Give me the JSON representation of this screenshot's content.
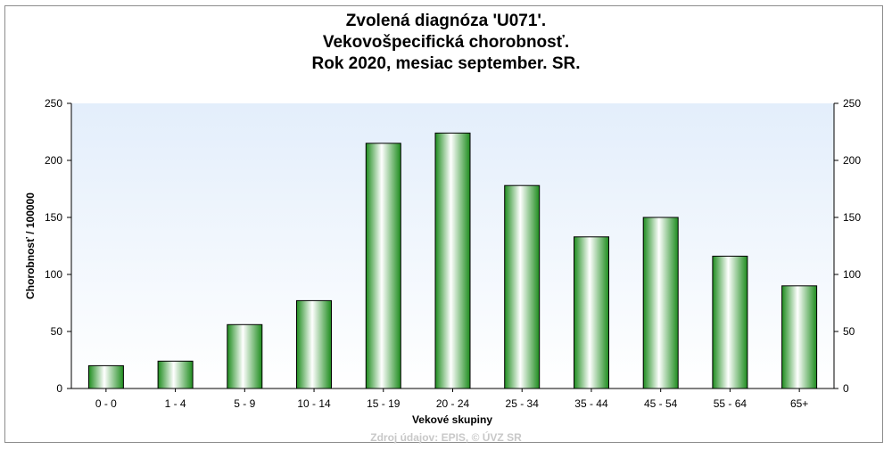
{
  "chart_data": {
    "type": "bar",
    "title_lines": [
      "Zvolená diagnóza 'U071'.",
      "Vekovošpecifická chorobnosť.",
      "Rok 2020, mesiac september. SR."
    ],
    "xlabel": "Vekové skupiny",
    "ylabel": "Chorobnosť / 100000",
    "categories": [
      "0 - 0",
      "1 - 4",
      "5 - 9",
      "10 - 14",
      "15 - 19",
      "20 - 24",
      "25 - 34",
      "35 - 44",
      "45 - 54",
      "55 - 64",
      "65+"
    ],
    "values": [
      20,
      24,
      56,
      77,
      215,
      224,
      178,
      133,
      150,
      116,
      90
    ],
    "ylim": [
      0,
      250
    ],
    "yticks": [
      0,
      50,
      100,
      150,
      200,
      250
    ],
    "grid": false,
    "legend": "none",
    "colors": {
      "bar_edge": "#1f7a1f",
      "bar_dark": "#1e8c1e",
      "bar_light": "#ffffff",
      "plot_bg_top": "#e3eefb",
      "plot_bg_bottom": "#ffffff"
    }
  },
  "source_text": "Zdroj údajov: EPIS, © ÚVZ SR"
}
